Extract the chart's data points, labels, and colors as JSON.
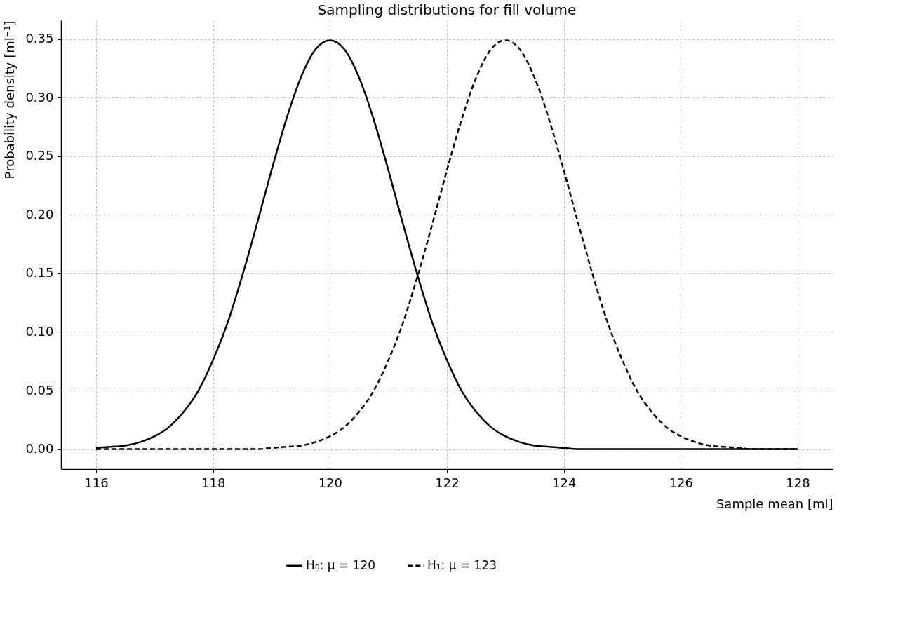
{
  "chart_data": {
    "type": "line",
    "title": "Sampling distributions for fill volume",
    "xlabel": "Sample mean [ml]",
    "ylabel": "Probability density [ml⁻¹]",
    "x": [
      116,
      116.25,
      116.5,
      116.75,
      117,
      117.25,
      117.5,
      117.75,
      118,
      118.25,
      118.5,
      118.75,
      119,
      119.25,
      119.5,
      119.75,
      120,
      120.25,
      120.5,
      120.75,
      121,
      121.25,
      121.5,
      121.75,
      122,
      122.25,
      122.5,
      122.75,
      123,
      123.25,
      123.5,
      123.75,
      124,
      124.25,
      124.5,
      124.75,
      125,
      125.25,
      125.5,
      125.75,
      126,
      126.25,
      126.5,
      126.75,
      127,
      127.25,
      127.5,
      127.75,
      128
    ],
    "series": [
      {
        "name": "H₀: μ = 120",
        "color": "#000000",
        "line_style": "solid",
        "values": [
          0.001,
          0.002,
          0.003,
          0.006,
          0.011,
          0.019,
          0.032,
          0.05,
          0.076,
          0.108,
          0.148,
          0.192,
          0.238,
          0.281,
          0.317,
          0.341,
          0.349,
          0.341,
          0.317,
          0.281,
          0.238,
          0.192,
          0.148,
          0.108,
          0.076,
          0.05,
          0.032,
          0.019,
          0.011,
          0.006,
          0.003,
          0.002,
          0.001,
          0,
          0,
          0,
          0,
          0,
          0,
          0,
          0,
          0,
          0,
          0,
          0,
          0,
          0,
          0,
          0
        ]
      },
      {
        "name": "H₁: μ = 123",
        "color": "#000000",
        "line_style": "dashed",
        "values": [
          0,
          0,
          0,
          0,
          0,
          0,
          0,
          0,
          0,
          0,
          0,
          0,
          0.001,
          0.002,
          0.003,
          0.006,
          0.011,
          0.019,
          0.032,
          0.05,
          0.076,
          0.108,
          0.148,
          0.192,
          0.238,
          0.281,
          0.317,
          0.341,
          0.349,
          0.341,
          0.317,
          0.281,
          0.238,
          0.192,
          0.148,
          0.108,
          0.076,
          0.05,
          0.032,
          0.019,
          0.011,
          0.006,
          0.003,
          0.002,
          0.001,
          0,
          0,
          0,
          0
        ]
      }
    ],
    "xlim": [
      115.4,
      128.6
    ],
    "ylim": [
      -0.017,
      0.366
    ],
    "xticks": [
      116,
      118,
      120,
      122,
      124,
      126,
      128
    ],
    "yticks": [
      {
        "value": 0,
        "label": "0.00"
      },
      {
        "value": 0.05,
        "label": "0.05"
      },
      {
        "value": 0.1,
        "label": "0.10"
      },
      {
        "value": 0.15,
        "label": "0.15"
      },
      {
        "value": 0.2,
        "label": "0.20"
      },
      {
        "value": 0.25,
        "label": "0.25"
      },
      {
        "value": 0.3,
        "label": "0.30"
      },
      {
        "value": 0.35,
        "label": "0.35"
      }
    ],
    "grid": true,
    "legend": "bottom"
  }
}
